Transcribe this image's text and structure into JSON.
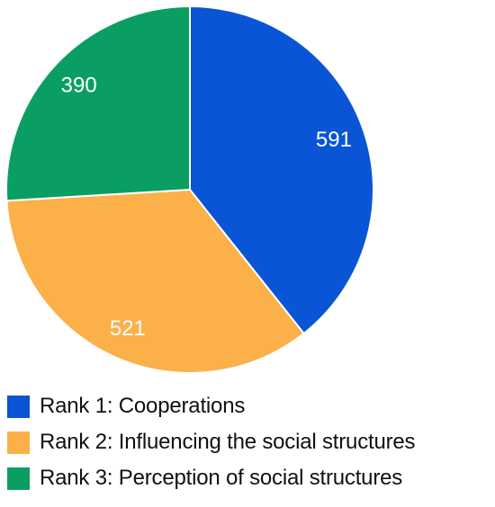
{
  "chart_data": {
    "type": "pie",
    "title": "",
    "legend_position": "bottom",
    "slices": [
      {
        "name": "Rank 1: Cooperations",
        "value": 591,
        "label": "591",
        "color": "#0a55d6"
      },
      {
        "name": "Rank 2: Influencing the social structures",
        "value": 521,
        "label": "521",
        "color": "#fbb04a"
      },
      {
        "name": "Rank 3: Perception of social structures",
        "value": 390,
        "label": "390",
        "color": "#0b9e63"
      }
    ]
  }
}
